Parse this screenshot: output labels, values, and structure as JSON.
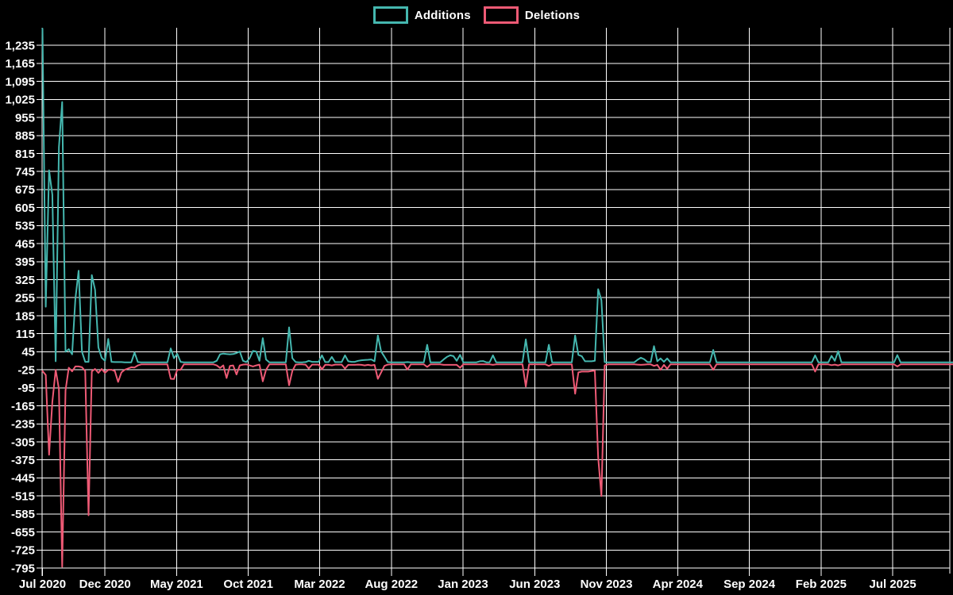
{
  "colors": {
    "background": "#000000",
    "grid": "#ffffff",
    "text": "#ffffff",
    "additions": "#45b7af",
    "deletions": "#ee5a75"
  },
  "legend": {
    "additions_label": "Additions",
    "deletions_label": "Deletions"
  },
  "chart_data": {
    "type": "line",
    "title": "",
    "xlabel": "",
    "ylabel": "",
    "x_unit": "weeks since Jul 2020",
    "grid": true,
    "legend_position": "top-center",
    "ylim": [
      -800,
      1305
    ],
    "y_ticks": [
      "1,235",
      "1,165",
      "1,095",
      "1,025",
      "955",
      "885",
      "815",
      "745",
      "675",
      "605",
      "535",
      "465",
      "395",
      "325",
      "255",
      "185",
      "115",
      "45",
      "-25",
      "-95",
      "-165",
      "-235",
      "-305",
      "-375",
      "-445",
      "-515",
      "-585",
      "-655",
      "-725",
      "-795"
    ],
    "x_ticks": [
      {
        "label": "Jul 2020",
        "week": 0
      },
      {
        "label": "Dec 2020",
        "week": 19
      },
      {
        "label": "May 2021",
        "week": 40.8
      },
      {
        "label": "Oct 2021",
        "week": 62.6
      },
      {
        "label": "Mar 2022",
        "week": 84.3
      },
      {
        "label": "Aug 2022",
        "week": 106.1
      },
      {
        "label": "Jan 2023",
        "week": 127.9
      },
      {
        "label": "Jun 2023",
        "week": 149.7
      },
      {
        "label": "Nov 2023",
        "week": 171.5
      },
      {
        "label": "Apr 2024",
        "week": 193.2
      },
      {
        "label": "Sep 2024",
        "week": 215
      },
      {
        "label": "Feb 2025",
        "week": 236.8
      },
      {
        "label": "Jul 2025",
        "week": 258.6
      }
    ],
    "series": [
      {
        "name": "Additions",
        "color_key": "additions",
        "values": [
          1300,
          220,
          750,
          655,
          8,
          840,
          1015,
          45,
          55,
          35,
          250,
          360,
          45,
          6,
          6,
          343,
          286,
          62,
          22,
          10,
          95,
          6,
          5,
          5,
          5,
          4,
          4,
          4,
          42,
          5,
          4,
          4,
          4,
          4,
          4,
          4,
          4,
          4,
          4,
          58,
          20,
          37,
          6,
          4,
          4,
          4,
          4,
          4,
          4,
          4,
          4,
          4,
          4,
          10,
          35,
          38,
          36,
          35,
          36,
          40,
          46,
          10,
          5,
          20,
          48,
          46,
          10,
          98,
          15,
          4,
          4,
          4,
          4,
          4,
          4,
          140,
          20,
          5,
          4,
          4,
          5,
          10,
          6,
          6,
          6,
          31,
          5,
          5,
          25,
          5,
          5,
          5,
          31,
          8,
          6,
          6,
          10,
          12,
          13,
          14,
          15,
          8,
          108,
          46,
          26,
          5,
          4,
          4,
          4,
          4,
          4,
          5,
          4,
          4,
          4,
          4,
          4,
          72,
          4,
          4,
          4,
          4,
          15,
          25,
          31,
          28,
          10,
          33,
          4,
          4,
          4,
          4,
          4,
          8,
          9,
          4,
          4,
          31,
          4,
          4,
          4,
          4,
          4,
          4,
          4,
          4,
          4,
          93,
          4,
          4,
          4,
          4,
          4,
          4,
          72,
          4,
          4,
          4,
          4,
          4,
          4,
          4,
          108,
          33,
          28,
          8,
          8,
          8,
          10,
          288,
          245,
          5,
          4,
          4,
          4,
          4,
          4,
          4,
          4,
          4,
          4,
          14,
          22,
          16,
          5,
          5,
          67,
          8,
          19,
          6,
          19,
          4,
          4,
          4,
          4,
          4,
          4,
          4,
          4,
          4,
          4,
          4,
          4,
          4,
          52,
          4,
          4,
          4,
          4,
          4,
          4,
          4,
          4,
          4,
          4,
          4,
          4,
          4,
          4,
          4,
          4,
          4,
          4,
          4,
          4,
          4,
          4,
          4,
          4,
          4,
          4,
          4,
          4,
          4,
          4,
          31,
          4,
          4,
          4,
          4,
          29,
          10,
          47,
          4,
          4,
          4,
          4,
          4,
          4,
          4,
          4,
          4,
          4,
          4,
          4,
          4,
          4,
          4,
          4,
          4,
          32,
          4,
          4,
          4,
          4,
          4,
          4,
          4,
          4,
          4,
          4,
          4,
          4,
          4,
          4,
          4,
          4,
          4
        ]
      },
      {
        "name": "Deletions",
        "color_key": "deletions",
        "values": [
          -30,
          -45,
          -355,
          -150,
          -25,
          -100,
          -790,
          -105,
          -17,
          -31,
          -12,
          -12,
          -15,
          -30,
          -590,
          -31,
          -22,
          -37,
          -22,
          -37,
          -25,
          -25,
          -30,
          -72,
          -35,
          -25,
          -20,
          -15,
          -16,
          -8,
          -4,
          -4,
          -4,
          -4,
          -4,
          -4,
          -4,
          -4,
          -4,
          -60,
          -61,
          -25,
          -25,
          -4,
          -4,
          -4,
          -4,
          -4,
          -4,
          -4,
          -4,
          -4,
          -4,
          -8,
          -18,
          -8,
          -57,
          -10,
          -8,
          -43,
          -8,
          -5,
          -4,
          -8,
          -12,
          -8,
          -5,
          -70,
          -25,
          -4,
          -4,
          -4,
          -4,
          -4,
          -4,
          -85,
          -30,
          -5,
          -4,
          -4,
          -5,
          -20,
          -5,
          -5,
          -5,
          -23,
          -6,
          -6,
          -8,
          -5,
          -5,
          -5,
          -20,
          -6,
          -6,
          -6,
          -5,
          -6,
          -8,
          -6,
          -8,
          -6,
          -60,
          -35,
          -10,
          -5,
          -4,
          -4,
          -4,
          -4,
          -4,
          -24,
          -4,
          -4,
          -4,
          -4,
          -4,
          -14,
          -4,
          -4,
          -4,
          -4,
          -6,
          -6,
          -6,
          -6,
          -6,
          -17,
          -4,
          -4,
          -4,
          -4,
          -4,
          -4,
          -4,
          -4,
          -4,
          -6,
          -4,
          -4,
          -4,
          -4,
          -4,
          -4,
          -4,
          -4,
          -4,
          -90,
          -4,
          -4,
          -4,
          -4,
          -4,
          -4,
          -10,
          -4,
          -4,
          -4,
          -4,
          -4,
          -4,
          -4,
          -118,
          -35,
          -32,
          -32,
          -32,
          -30,
          -28,
          -365,
          -515,
          -8,
          -4,
          -4,
          -4,
          -4,
          -4,
          -4,
          -4,
          -4,
          -4,
          -5,
          -6,
          -5,
          -4,
          -4,
          -10,
          -6,
          -25,
          -6,
          -21,
          -4,
          -4,
          -4,
          -4,
          -4,
          -4,
          -4,
          -4,
          -4,
          -4,
          -4,
          -4,
          -4,
          -25,
          -4,
          -4,
          -4,
          -4,
          -4,
          -4,
          -4,
          -4,
          -4,
          -4,
          -4,
          -4,
          -4,
          -4,
          -4,
          -4,
          -4,
          -4,
          -4,
          -4,
          -4,
          -4,
          -4,
          -4,
          -4,
          -4,
          -4,
          -4,
          -4,
          -4,
          -32,
          -4,
          -4,
          -4,
          -4,
          -7,
          -5,
          -8,
          -4,
          -4,
          -4,
          -4,
          -4,
          -4,
          -4,
          -4,
          -4,
          -4,
          -4,
          -4,
          -4,
          -4,
          -4,
          -4,
          -4,
          -12,
          -4,
          -4,
          -4,
          -4,
          -4,
          -4,
          -4,
          -4,
          -4,
          -4,
          -4,
          -4,
          -4,
          -4,
          -4,
          -4,
          -4
        ]
      }
    ]
  }
}
